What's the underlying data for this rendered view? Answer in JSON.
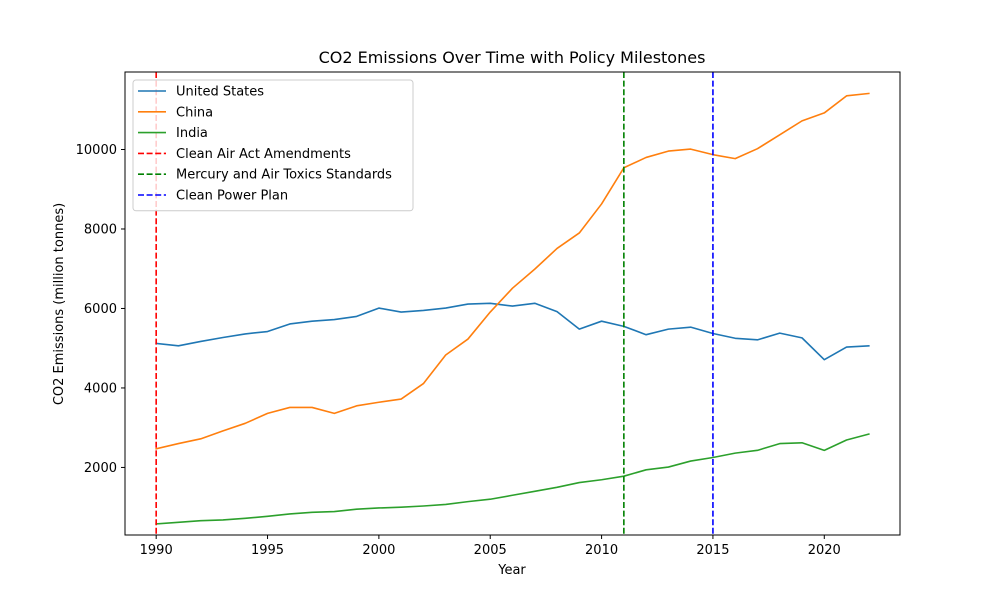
{
  "chart_data": {
    "type": "line",
    "title": "CO2 Emissions Over Time with Policy Milestones",
    "xlabel": "Year",
    "ylabel": "CO2 Emissions (million tonnes)",
    "xlim": [
      1988.6,
      2023.4
    ],
    "ylim": [
      300,
      11950
    ],
    "xticks": [
      1990,
      1995,
      2000,
      2005,
      2010,
      2015,
      2020
    ],
    "yticks": [
      2000,
      4000,
      6000,
      8000,
      10000
    ],
    "grid": false,
    "legend_position": "top-left",
    "x": [
      1990,
      1991,
      1992,
      1993,
      1994,
      1995,
      1996,
      1997,
      1998,
      1999,
      2000,
      2001,
      2002,
      2003,
      2004,
      2005,
      2006,
      2007,
      2008,
      2009,
      2010,
      2011,
      2012,
      2013,
      2014,
      2015,
      2016,
      2017,
      2018,
      2019,
      2020,
      2021,
      2022
    ],
    "series": [
      {
        "name": "United States",
        "color": "#1f77b4",
        "values": [
          5120,
          5060,
          5170,
          5270,
          5360,
          5420,
          5610,
          5680,
          5720,
          5800,
          6010,
          5910,
          5950,
          6010,
          6110,
          6130,
          6060,
          6130,
          5920,
          5480,
          5680,
          5550,
          5340,
          5480,
          5530,
          5370,
          5250,
          5210,
          5380,
          5260,
          4710,
          5030,
          5060
        ]
      },
      {
        "name": "China",
        "color": "#ff7f0e",
        "values": [
          2470,
          2600,
          2720,
          2920,
          3110,
          3360,
          3510,
          3510,
          3360,
          3550,
          3640,
          3720,
          4110,
          4830,
          5230,
          5910,
          6510,
          6990,
          7510,
          7900,
          8630,
          9540,
          9800,
          9960,
          10010,
          9870,
          9770,
          10020,
          10370,
          10720,
          10920,
          11350,
          11410
        ]
      },
      {
        "name": "India",
        "color": "#2ca02c",
        "values": [
          580,
          620,
          660,
          680,
          720,
          770,
          830,
          870,
          890,
          950,
          980,
          1000,
          1030,
          1070,
          1140,
          1200,
          1300,
          1400,
          1500,
          1620,
          1690,
          1780,
          1940,
          2010,
          2160,
          2250,
          2360,
          2430,
          2600,
          2620,
          2430,
          2690,
          2840
        ]
      }
    ],
    "vlines": [
      {
        "name": "Clean Air Act Amendments",
        "x": 1990,
        "color": "#ff0000"
      },
      {
        "name": "Mercury and Air Toxics Standards",
        "x": 2011,
        "color": "#008000"
      },
      {
        "name": "Clean Power Plan",
        "x": 2015,
        "color": "#0000ff"
      }
    ]
  }
}
